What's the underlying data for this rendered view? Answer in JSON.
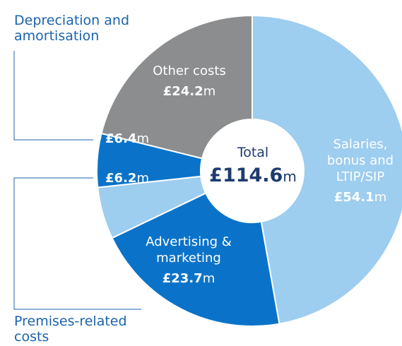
{
  "chart_data": {
    "type": "donut",
    "categories": [
      "Salaries, bonus and LTIP/SIP",
      "Advertising & marketing",
      "Premises-related costs",
      "Depreciation and amortisation",
      "Other costs"
    ],
    "values": [
      54.1,
      23.7,
      6.2,
      6.4,
      24.2
    ],
    "value_labels": [
      "£54.1",
      "£23.7",
      "£6.2",
      "£6.4",
      "£24.2"
    ],
    "unit": "m",
    "colors": [
      "#9dcdef",
      "#0a73c9",
      "#9dcdef",
      "#0a73c9",
      "#8b8d8e"
    ],
    "center_title": "Total",
    "center_value_label": "£114.6"
  }
}
